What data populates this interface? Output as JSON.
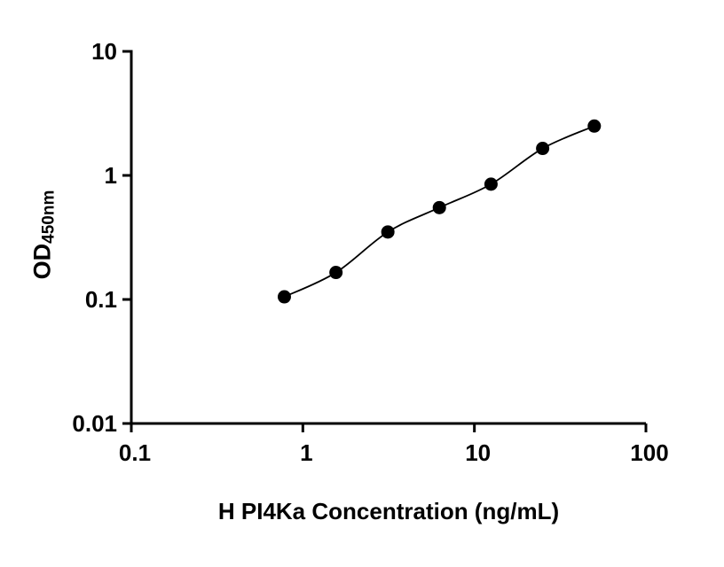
{
  "chart_data": {
    "type": "scatter",
    "title": "",
    "xlabel": "H PI4Ka Concentration (ng/mL)",
    "ylabel_main": "OD",
    "ylabel_sub": "450nm",
    "x": [
      0.78,
      1.56,
      3.13,
      6.25,
      12.5,
      25,
      50
    ],
    "y": [
      0.105,
      0.165,
      0.35,
      0.55,
      0.85,
      1.65,
      2.5
    ],
    "xscale": "log",
    "yscale": "log",
    "xlim": [
      0.1,
      100
    ],
    "ylim": [
      0.01,
      10
    ],
    "xticks": [
      0.1,
      1,
      10,
      100
    ],
    "xtick_labels": [
      "0.1",
      "1",
      "10",
      "100"
    ],
    "yticks": [
      0.01,
      0.1,
      1,
      10
    ],
    "ytick_labels": [
      "0.01",
      "0.1",
      "1",
      "10"
    ],
    "point_color": "#000000",
    "line_color": "#000000",
    "axis_color": "#000000",
    "grid": false,
    "legend": "none",
    "curve_style": "smooth-fit-through-points"
  }
}
